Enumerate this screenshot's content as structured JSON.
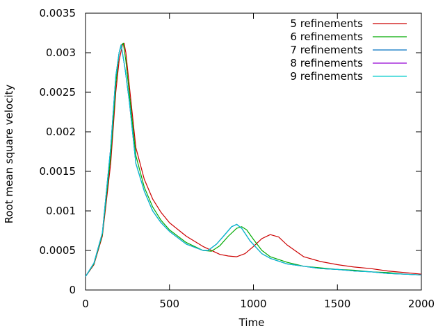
{
  "chart_data": {
    "type": "line",
    "xlabel": "Time",
    "ylabel": "Root mean square velocity",
    "xlim": [
      0,
      2000
    ],
    "ylim": [
      0,
      0.0035
    ],
    "x_ticks": [
      {
        "value": 0,
        "label": "0"
      },
      {
        "value": 500,
        "label": "500"
      },
      {
        "value": 1000,
        "label": "1000"
      },
      {
        "value": 1500,
        "label": "1500"
      },
      {
        "value": 2000,
        "label": "2000"
      }
    ],
    "y_ticks": [
      {
        "value": 0,
        "label": "0"
      },
      {
        "value": 0.0005,
        "label": "0.0005"
      },
      {
        "value": 0.001,
        "label": "0.001"
      },
      {
        "value": 0.0015,
        "label": "0.0015"
      },
      {
        "value": 0.002,
        "label": "0.002"
      },
      {
        "value": 0.0025,
        "label": "0.0025"
      },
      {
        "value": 0.003,
        "label": "0.003"
      },
      {
        "value": 0.0035,
        "label": "0.0035"
      }
    ],
    "grid": false,
    "legend_position": "top-right",
    "series": [
      {
        "name": "5 refinements",
        "color": "#cc0000",
        "x": [
          0,
          50,
          100,
          150,
          180,
          200,
          220,
          230,
          240,
          260,
          300,
          350,
          400,
          450,
          500,
          600,
          700,
          800,
          850,
          900,
          950,
          1000,
          1050,
          1100,
          1150,
          1200,
          1300,
          1400,
          1500,
          1600,
          1700,
          1800,
          1900,
          2000
        ],
        "values": [
          0.00017,
          0.00032,
          0.00068,
          0.0016,
          0.0025,
          0.0029,
          0.0031,
          0.00312,
          0.003,
          0.0026,
          0.0018,
          0.0014,
          0.00115,
          0.00098,
          0.00085,
          0.00068,
          0.00055,
          0.00045,
          0.00043,
          0.00042,
          0.00046,
          0.00055,
          0.00065,
          0.0007,
          0.00067,
          0.00057,
          0.00042,
          0.00036,
          0.00032,
          0.00029,
          0.00027,
          0.00024,
          0.00022,
          0.0002
        ]
      },
      {
        "name": "6 refinements",
        "color": "#00aa00",
        "x": [
          0,
          50,
          100,
          150,
          180,
          200,
          215,
          225,
          240,
          260,
          300,
          350,
          400,
          450,
          500,
          600,
          700,
          750,
          800,
          850,
          900,
          930,
          960,
          1000,
          1050,
          1100,
          1200,
          1300,
          1400,
          1500,
          1600,
          1700,
          1800,
          1900,
          2000
        ],
        "values": [
          0.00017,
          0.00033,
          0.0007,
          0.0017,
          0.0026,
          0.003,
          0.0031,
          0.00312,
          0.0029,
          0.0025,
          0.0017,
          0.0013,
          0.00105,
          0.00088,
          0.00076,
          0.0006,
          0.0005,
          0.00049,
          0.00056,
          0.00068,
          0.00078,
          0.0008,
          0.00076,
          0.00064,
          0.0005,
          0.00042,
          0.00035,
          0.0003,
          0.00028,
          0.00026,
          0.00025,
          0.00023,
          0.00022,
          0.0002,
          0.00019
        ]
      },
      {
        "name": "7 refinements",
        "color": "#0070c0",
        "x": [
          0,
          50,
          100,
          150,
          180,
          200,
          212,
          220,
          235,
          260,
          300,
          350,
          400,
          450,
          500,
          600,
          700,
          730,
          780,
          830,
          870,
          900,
          930,
          980,
          1050,
          1100,
          1200,
          1300,
          1400,
          1500,
          1600,
          1700,
          1800,
          1900,
          2000
        ],
        "values": [
          0.00017,
          0.00034,
          0.00072,
          0.0018,
          0.0027,
          0.003,
          0.0031,
          0.003,
          0.0028,
          0.0024,
          0.0016,
          0.00125,
          0.001,
          0.00085,
          0.00074,
          0.00058,
          0.0005,
          0.0005,
          0.00058,
          0.0007,
          0.0008,
          0.00083,
          0.00078,
          0.00062,
          0.00046,
          0.0004,
          0.00033,
          0.0003,
          0.00027,
          0.00026,
          0.00024,
          0.00023,
          0.00021,
          0.0002,
          0.00019
        ]
      },
      {
        "name": "8 refinements",
        "color": "#9400d3",
        "x": [
          0,
          50,
          100,
          150,
          180,
          200,
          212,
          220,
          235,
          260,
          300,
          350,
          400,
          450,
          500,
          600,
          700,
          730,
          780,
          830,
          870,
          900,
          930,
          980,
          1050,
          1100,
          1200,
          1300,
          1400,
          1500,
          1600,
          1700,
          1800,
          1900,
          2000
        ],
        "values": [
          0.00017,
          0.00034,
          0.00072,
          0.0018,
          0.0027,
          0.003,
          0.0031,
          0.003,
          0.0028,
          0.0024,
          0.0016,
          0.00125,
          0.001,
          0.00085,
          0.00074,
          0.00058,
          0.0005,
          0.0005,
          0.00058,
          0.0007,
          0.0008,
          0.00083,
          0.00078,
          0.00062,
          0.00046,
          0.0004,
          0.00033,
          0.0003,
          0.00027,
          0.00026,
          0.00024,
          0.00023,
          0.00021,
          0.0002,
          0.00019
        ]
      },
      {
        "name": "9 refinements",
        "color": "#00cccc",
        "x": [
          0,
          50,
          100,
          150,
          180,
          200,
          212,
          220,
          235,
          260,
          300,
          350,
          400,
          450,
          500,
          600,
          700,
          730,
          780,
          830,
          870,
          900,
          930,
          980,
          1050,
          1100,
          1200,
          1300,
          1400,
          1500,
          1600,
          1700,
          1800,
          1900,
          2000
        ],
        "values": [
          0.00017,
          0.00034,
          0.00072,
          0.0018,
          0.0027,
          0.003,
          0.0031,
          0.003,
          0.0028,
          0.0024,
          0.0016,
          0.00125,
          0.001,
          0.00085,
          0.00074,
          0.00058,
          0.0005,
          0.0005,
          0.00058,
          0.0007,
          0.0008,
          0.00083,
          0.00078,
          0.00062,
          0.00046,
          0.0004,
          0.00033,
          0.0003,
          0.00027,
          0.00026,
          0.00024,
          0.00023,
          0.00021,
          0.0002,
          0.00019
        ]
      }
    ]
  }
}
